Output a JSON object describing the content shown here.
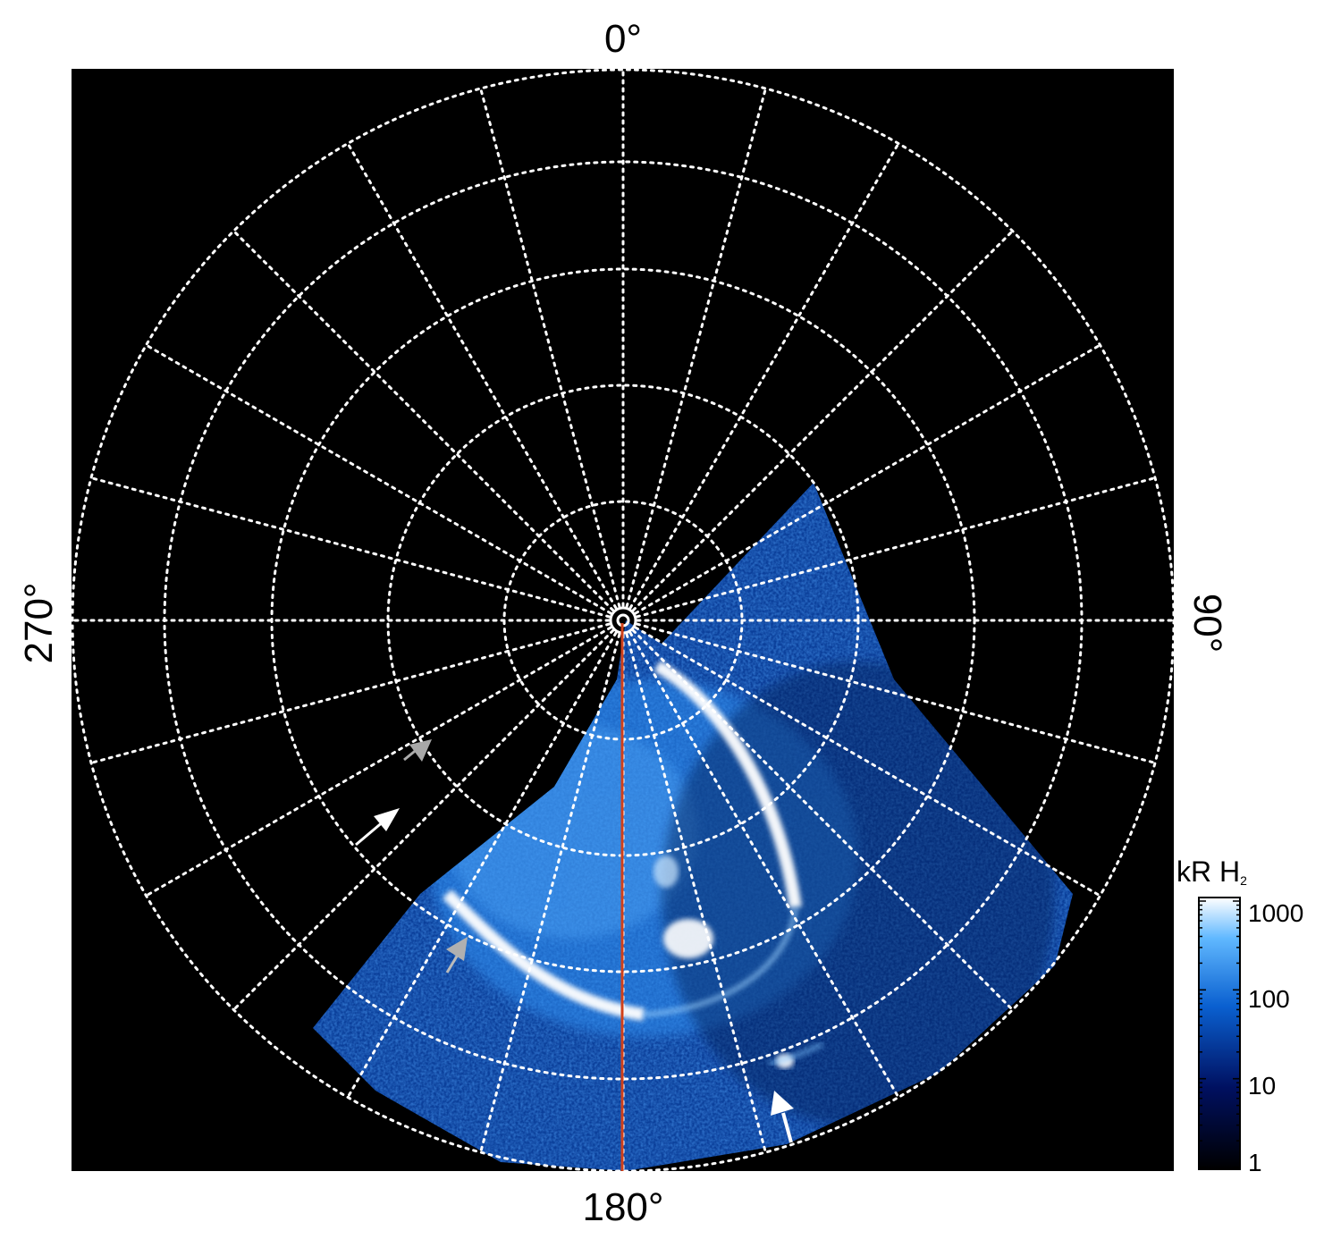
{
  "labels": {
    "top": "0°",
    "bottom": "180°",
    "left": "270°",
    "right": "90°"
  },
  "colorbar": {
    "title": "kR H",
    "title_subscript": "2",
    "ticks": [
      "1000",
      "100",
      "10",
      "1"
    ]
  },
  "colors": {
    "background": "#000000",
    "grid": "#ffffff",
    "meridian_line": "#d0401a",
    "aurora_low": "#00103a",
    "aurora_mid": "#1a7de0",
    "aurora_high": "#ffffff"
  }
}
